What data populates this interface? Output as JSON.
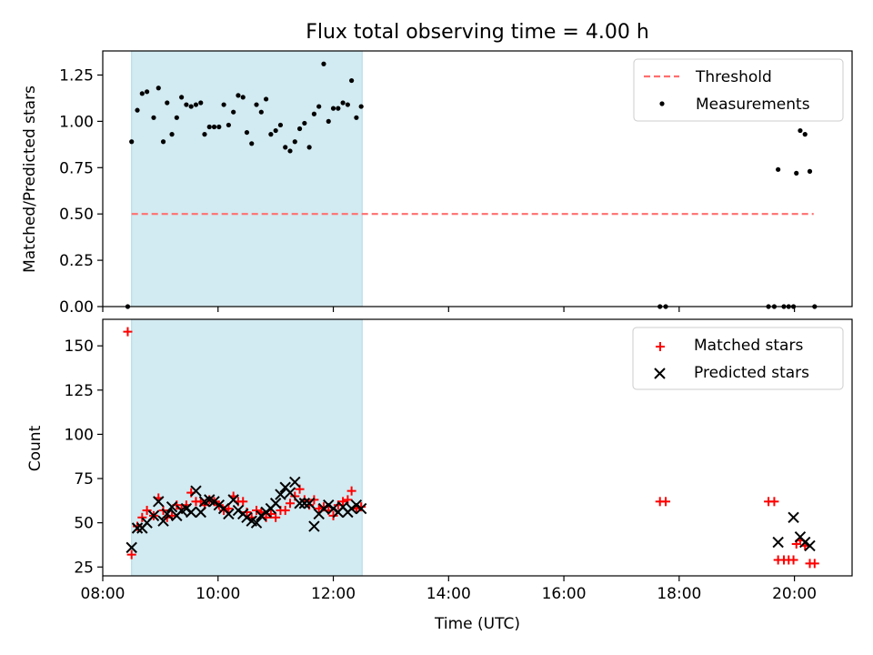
{
  "figure": {
    "title": "Flux total observing time = 4.00 h"
  },
  "colors": {
    "shade": "#add8e6",
    "threshold": "#ff6f6f",
    "measurement": "#000000",
    "matched": "#ff0000",
    "predicted": "#000000"
  },
  "chart_data": [
    {
      "type": "scatter",
      "panel": "top",
      "title": "Flux total observing time = 4.00 h",
      "xlabel": "",
      "ylabel": "Matched/Predicted stars",
      "xlim": [
        "08:00",
        "21:00"
      ],
      "ylim": [
        0,
        1.38
      ],
      "yticks": [
        0.0,
        0.25,
        0.5,
        0.75,
        1.0,
        1.25
      ],
      "ytick_labels": [
        "0.00",
        "0.25",
        "0.50",
        "0.75",
        "1.00",
        "1.25"
      ],
      "xticks": [
        "08:00",
        "10:00",
        "12:00",
        "14:00",
        "16:00",
        "18:00",
        "20:00"
      ],
      "grid": false,
      "legend": "top-right",
      "shaded_span": [
        "08:30",
        "12:30"
      ],
      "series": [
        {
          "name": "Threshold",
          "type": "line",
          "style": "dashed",
          "x": [
            "08:30",
            "20:20"
          ],
          "y": [
            0.5,
            0.5
          ]
        },
        {
          "name": "Measurements",
          "type": "scatter",
          "x": [
            "08:26",
            "08:30",
            "08:36",
            "08:41",
            "08:46",
            "08:53",
            "08:58",
            "09:03",
            "09:07",
            "09:12",
            "09:17",
            "09:22",
            "09:27",
            "09:32",
            "09:37",
            "09:42",
            "09:46",
            "09:51",
            "09:56",
            "10:01",
            "10:06",
            "10:11",
            "10:16",
            "10:21",
            "10:26",
            "10:30",
            "10:35",
            "10:40",
            "10:45",
            "10:50",
            "10:55",
            "11:00",
            "11:05",
            "11:10",
            "11:15",
            "11:20",
            "11:25",
            "11:30",
            "11:35",
            "11:40",
            "11:45",
            "11:50",
            "11:55",
            "12:00",
            "12:05",
            "12:10",
            "12:15",
            "12:19",
            "12:24",
            "12:29",
            "17:40",
            "17:46",
            "19:33",
            "19:39",
            "19:43",
            "19:49",
            "19:54",
            "19:59",
            "20:02",
            "20:06",
            "20:11",
            "20:16",
            "20:21"
          ],
          "y": [
            0.0,
            0.89,
            1.06,
            1.15,
            1.16,
            1.02,
            1.18,
            0.89,
            1.1,
            0.93,
            1.02,
            1.13,
            1.09,
            1.08,
            1.09,
            1.1,
            0.93,
            0.97,
            0.97,
            0.97,
            1.09,
            0.98,
            1.05,
            1.14,
            1.13,
            0.94,
            0.88,
            1.09,
            1.05,
            1.12,
            0.93,
            0.95,
            0.98,
            0.86,
            0.84,
            0.89,
            0.96,
            0.99,
            0.86,
            1.04,
            1.08,
            1.31,
            1.0,
            1.07,
            1.07,
            1.1,
            1.09,
            1.22,
            1.02,
            1.08,
            0.0,
            0.0,
            0.0,
            0.0,
            0.74,
            0.0,
            0.0,
            0.0,
            0.72,
            0.95,
            0.93,
            0.73,
            0.0
          ]
        }
      ]
    },
    {
      "type": "scatter",
      "panel": "bottom",
      "xlabel": "Time (UTC)",
      "ylabel": "Count",
      "xlim": [
        "08:00",
        "21:00"
      ],
      "ylim": [
        20,
        165
      ],
      "yticks": [
        25,
        50,
        75,
        100,
        125,
        150
      ],
      "ytick_labels": [
        "25",
        "50",
        "75",
        "100",
        "125",
        "150"
      ],
      "xticks": [
        "08:00",
        "10:00",
        "12:00",
        "14:00",
        "16:00",
        "18:00",
        "20:00"
      ],
      "grid": false,
      "legend": "top-right",
      "shaded_span": [
        "08:30",
        "12:30"
      ],
      "series": [
        {
          "name": "Matched stars",
          "marker": "plus",
          "x": [
            "08:26",
            "08:30",
            "08:36",
            "08:41",
            "08:46",
            "08:53",
            "08:58",
            "09:03",
            "09:07",
            "09:12",
            "09:17",
            "09:22",
            "09:27",
            "09:32",
            "09:37",
            "09:42",
            "09:46",
            "09:51",
            "09:56",
            "10:01",
            "10:06",
            "10:11",
            "10:16",
            "10:21",
            "10:26",
            "10:30",
            "10:35",
            "10:40",
            "10:45",
            "10:50",
            "10:55",
            "11:00",
            "11:05",
            "11:10",
            "11:15",
            "11:20",
            "11:25",
            "11:30",
            "11:35",
            "11:40",
            "11:45",
            "11:50",
            "11:55",
            "12:00",
            "12:05",
            "12:10",
            "12:15",
            "12:19",
            "12:24",
            "12:29",
            "17:40",
            "17:46",
            "19:33",
            "19:39",
            "19:43",
            "19:49",
            "19:54",
            "19:59",
            "20:02",
            "20:06",
            "20:11",
            "20:16",
            "20:21"
          ],
          "y": [
            158,
            32,
            48,
            53,
            57,
            54,
            64,
            57,
            53,
            54,
            60,
            58,
            60,
            67,
            62,
            62,
            60,
            63,
            62,
            60,
            57,
            58,
            65,
            62,
            62,
            56,
            53,
            57,
            56,
            53,
            55,
            53,
            57,
            57,
            61,
            65,
            69,
            63,
            60,
            63,
            58,
            59,
            57,
            54,
            60,
            62,
            63,
            68,
            58,
            59,
            62,
            62,
            62,
            62,
            29,
            29,
            29,
            29,
            38,
            40,
            37,
            27,
            27
          ]
        },
        {
          "name": "Predicted stars",
          "marker": "x",
          "x": [
            "08:30",
            "08:36",
            "08:41",
            "08:46",
            "08:53",
            "08:58",
            "09:03",
            "09:07",
            "09:12",
            "09:17",
            "09:22",
            "09:27",
            "09:32",
            "09:37",
            "09:42",
            "09:46",
            "09:51",
            "09:56",
            "10:01",
            "10:06",
            "10:11",
            "10:16",
            "10:21",
            "10:26",
            "10:30",
            "10:35",
            "10:40",
            "10:45",
            "10:50",
            "10:55",
            "11:00",
            "11:05",
            "11:10",
            "11:15",
            "11:20",
            "11:25",
            "11:30",
            "11:35",
            "11:40",
            "11:45",
            "11:50",
            "11:55",
            "12:00",
            "12:05",
            "12:10",
            "12:15",
            "12:19",
            "12:24",
            "12:29",
            "19:43",
            "19:59",
            "20:06",
            "20:11",
            "20:16"
          ],
          "y": [
            36,
            47,
            47,
            50,
            54,
            62,
            51,
            55,
            59,
            54,
            57,
            58,
            56,
            68,
            56,
            62,
            63,
            62,
            60,
            58,
            55,
            63,
            57,
            55,
            53,
            51,
            50,
            54,
            56,
            58,
            61,
            66,
            70,
            67,
            73,
            61,
            61,
            61,
            48,
            55,
            58,
            60,
            58,
            56,
            59,
            56,
            58,
            60,
            58,
            39,
            53,
            42,
            39,
            37
          ]
        }
      ]
    }
  ]
}
